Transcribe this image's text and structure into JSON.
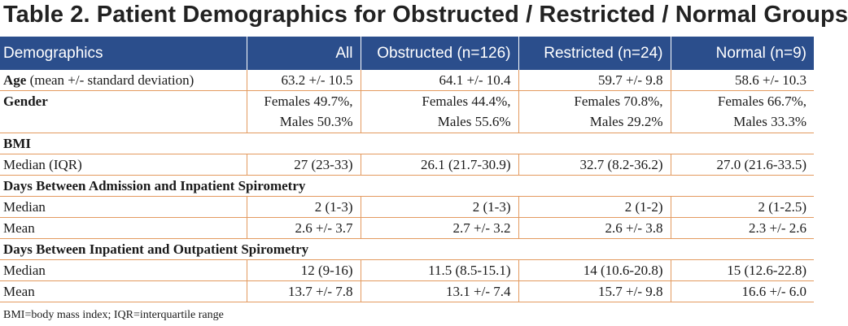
{
  "title": "Table 2. Patient Demographics for Obstructed / Restricted / Normal Groups",
  "header": [
    "Demographics",
    "All",
    "Obstructed (n=126)",
    "Restricted (n=24)",
    "Normal (n=9)"
  ],
  "age": {
    "label_bold": "Age",
    "label_rest": " (mean +/- standard deviation)",
    "values": [
      "63.2 +/- 10.5",
      "64.1 +/- 10.4",
      "59.7 +/- 9.8",
      "58.6 +/- 10.3"
    ]
  },
  "gender": {
    "label": "Gender",
    "females": [
      "Females 49.7%,",
      "Females 44.4%,",
      "Females 70.8%,",
      "Females 66.7%,"
    ],
    "males": [
      "Males 50.3%",
      "Males 55.6%",
      "Males 29.2%",
      "Males 33.3%"
    ]
  },
  "bmi": {
    "section": "BMI",
    "median_label": "Median (IQR)",
    "median": [
      "27 (23-33)",
      "26.1 (21.7-30.9)",
      "32.7 (8.2-36.2)",
      "27.0 (21.6-33.5)"
    ]
  },
  "admission": {
    "section": "Days Between Admission and Inpatient Spirometry",
    "median_label": "Median",
    "median": [
      "2 (1-3)",
      "2 (1-3)",
      "2 (1-2)",
      "2 (1-2.5)"
    ],
    "mean_label": "Mean",
    "mean": [
      "2.6 +/- 3.7",
      "2.7 +/- 3.2",
      "2.6 +/- 3.8",
      "2.3 +/- 2.6"
    ]
  },
  "outpatient": {
    "section": "Days Between Inpatient and Outpatient Spirometry",
    "median_label": "Median",
    "median": [
      "12 (9-16)",
      "11.5 (8.5-15.1)",
      "14 (10.6-20.8)",
      "15 (12.6-22.8)"
    ],
    "mean_label": "Mean",
    "mean": [
      "13.7 +/- 7.8",
      "13.1 +/- 7.4",
      "15.7 +/- 9.8",
      "16.6 +/- 6.0"
    ]
  },
  "footnote": "BMI=body mass index; IQR=interquartile range",
  "colors": {
    "header_bg": "#2b4e8c",
    "rule": "#e39a5f"
  }
}
